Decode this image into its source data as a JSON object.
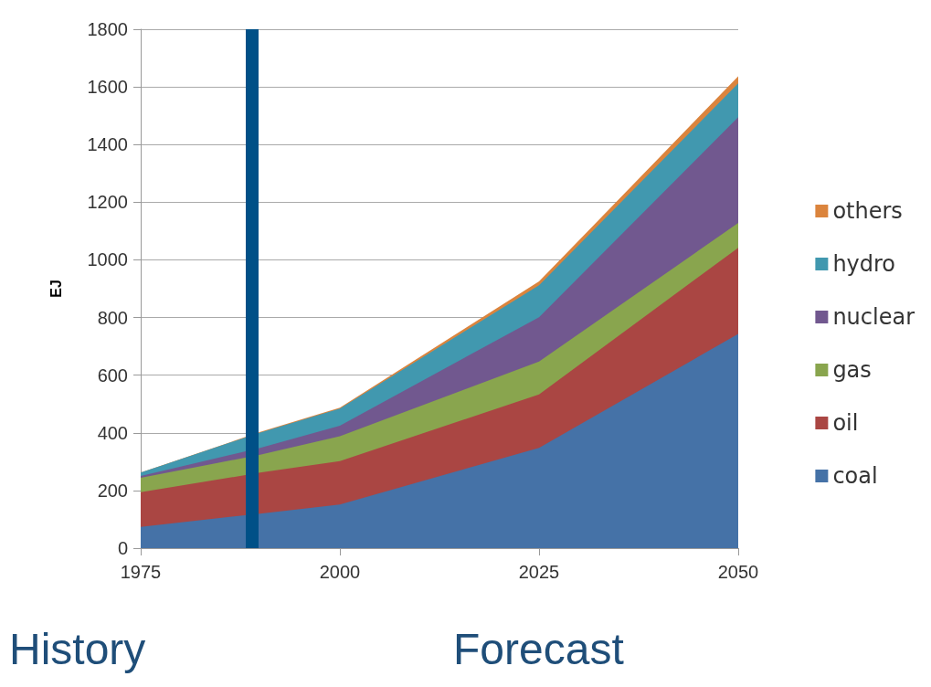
{
  "chart_data": {
    "type": "area",
    "stacked": true,
    "ylabel": "EJ",
    "x": [
      1975,
      1990,
      2000,
      2025,
      2050
    ],
    "xlim": [
      1975,
      2050
    ],
    "xticks": [
      1975,
      2000,
      2025,
      2050
    ],
    "ylim": [
      0,
      1800
    ],
    "yticks": [
      0,
      200,
      400,
      600,
      800,
      1000,
      1200,
      1400,
      1600,
      1800
    ],
    "grid": "y",
    "legend": "right",
    "series": [
      {
        "name": "coal",
        "color": "#4572a7",
        "values": [
          74,
          120,
          151,
          348,
          743
        ]
      },
      {
        "name": "oil",
        "color": "#aa4643",
        "values": [
          120,
          142,
          151,
          185,
          299
        ]
      },
      {
        "name": "gas",
        "color": "#89a54e",
        "values": [
          50,
          62,
          86,
          114,
          86
        ]
      },
      {
        "name": "nuclear",
        "color": "#71588f",
        "values": [
          6,
          24,
          37,
          154,
          367
        ]
      },
      {
        "name": "hydro",
        "color": "#4198af",
        "values": [
          12,
          53,
          59,
          111,
          117
        ]
      },
      {
        "name": "others",
        "color": "#db843d",
        "values": [
          0,
          2,
          3,
          13,
          25
        ]
      }
    ],
    "ref_lines": [
      {
        "axis": "x",
        "value": 1989,
        "color": "#005087"
      }
    ],
    "annotations": [
      "History",
      "Forecast"
    ]
  }
}
